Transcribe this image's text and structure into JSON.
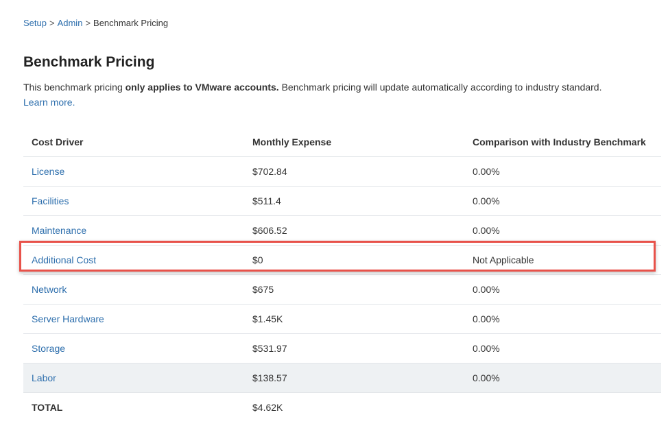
{
  "breadcrumb": {
    "items": [
      {
        "label": "Setup"
      },
      {
        "label": "Admin"
      }
    ],
    "separator": ">",
    "current": "Benchmark Pricing"
  },
  "header": {
    "title": "Benchmark Pricing"
  },
  "intro": {
    "text_before": "This benchmark pricing ",
    "bold_text": "only applies to VMware accounts.",
    "text_after": " Benchmark pricing will update automatically according to industry standard.",
    "learn_more": "Learn more."
  },
  "table": {
    "columns": [
      "Cost Driver",
      "Monthly Expense",
      "Comparison with Industry Benchmark"
    ],
    "rows": [
      {
        "driver": "License",
        "expense": "$702.84",
        "comparison": "0.00%"
      },
      {
        "driver": "Facilities",
        "expense": "$511.4",
        "comparison": "0.00%"
      },
      {
        "driver": "Maintenance",
        "expense": "$606.52",
        "comparison": "0.00%"
      },
      {
        "driver": "Additional Cost",
        "expense": "$0",
        "comparison": "Not Applicable"
      },
      {
        "driver": "Network",
        "expense": "$675",
        "comparison": "0.00%"
      },
      {
        "driver": "Server Hardware",
        "expense": "$1.45K",
        "comparison": "0.00%"
      },
      {
        "driver": "Storage",
        "expense": "$531.97",
        "comparison": "0.00%"
      },
      {
        "driver": "Labor",
        "expense": "$138.57",
        "comparison": "0.00%"
      }
    ],
    "total": {
      "label": "TOTAL",
      "expense": "$4.62K"
    }
  },
  "colors": {
    "link": "#2e6fad",
    "highlight_border": "#e8524a",
    "shaded_row": "#eef1f3"
  }
}
